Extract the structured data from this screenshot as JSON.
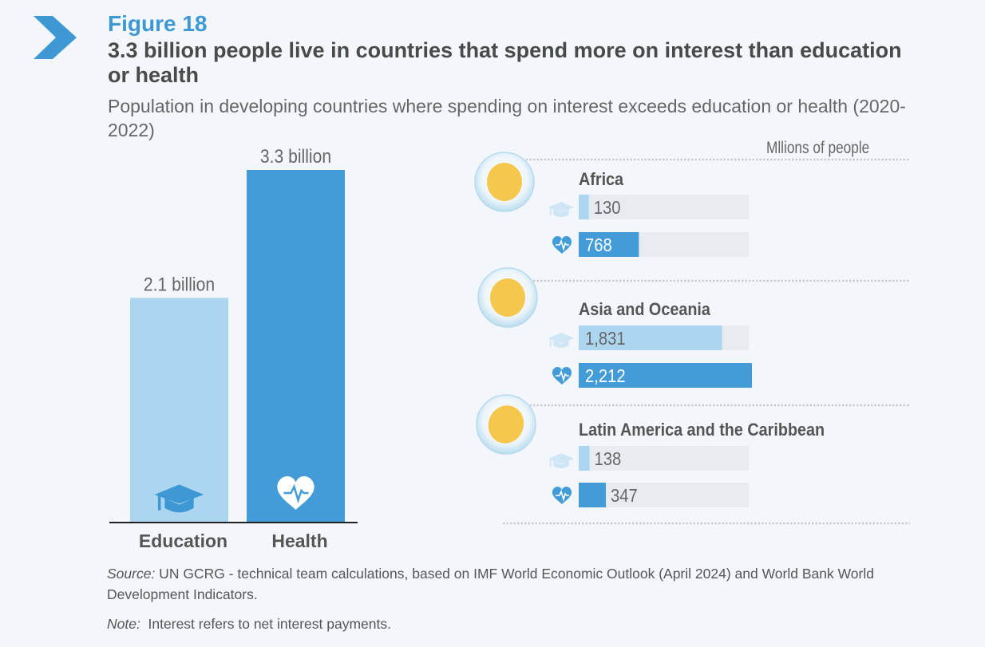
{
  "figure": {
    "label": "Figure 18",
    "title": "3.3 billion people live in countries that spend more on interest than education or health",
    "subtitle": "Population in developing countries where spending on interest exceeds education or health (2020-2022)",
    "units_label": "Mllions of people"
  },
  "colors": {
    "education": "#acd6ef",
    "health": "#439cd8",
    "track": "#e8ecf1",
    "accent": "#3d98d4",
    "continent": "#f6c443"
  },
  "chart_data": [
    {
      "type": "bar",
      "title": "Population in developing countries where spending on interest exceeds education or health (2020-2022)",
      "categories": [
        "Education",
        "Health"
      ],
      "values": [
        2.1,
        3.3
      ],
      "value_labels": [
        "2.1 billion",
        "3.3 billion"
      ],
      "units": "billion people",
      "icons": [
        "graduation-cap-icon",
        "heart-pulse-icon"
      ],
      "ylim": [
        0,
        3.3
      ]
    },
    {
      "type": "bar",
      "orientation": "horizontal",
      "units": "Mllions of people",
      "max": 2212,
      "series": [
        "Education",
        "Health"
      ],
      "regions": [
        {
          "name": "Africa",
          "education": 130,
          "health": 768,
          "education_label": "130",
          "health_label": "768"
        },
        {
          "name": "Asia and Oceania",
          "education": 1831,
          "health": 2212,
          "education_label": "1,831",
          "health_label": "2,212"
        },
        {
          "name": "Latin America and the Caribbean",
          "education": 138,
          "health": 347,
          "education_label": "138",
          "health_label": "347"
        }
      ]
    }
  ],
  "footer": {
    "source_label": "Source:",
    "source_text": " UN GCRG - technical team calculations, based on IMF World Economic Outlook (April 2024) and World Bank World Development Indicators.",
    "note_label": "Note:",
    "note_text": "  Interest refers to net interest payments."
  }
}
